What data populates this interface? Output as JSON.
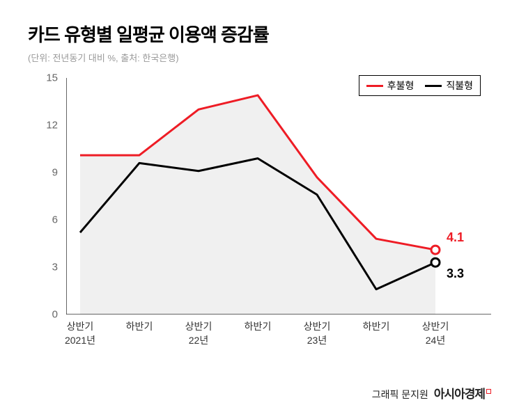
{
  "title": "카드 유형별 일평균 이용액 증감률",
  "subtitle": "(단위: 전년동기 대비 %, 출처: 한국은행)",
  "chart": {
    "type": "line",
    "background_color": "#ffffff",
    "area_fill_color": "#f0f0f0",
    "grid_color": "#cccccc",
    "axis_color": "#333333",
    "tick_fontsize": 15,
    "x_categories": [
      "상반기",
      "하반기",
      "상반기",
      "하반기",
      "상반기",
      "하반기",
      "상반기"
    ],
    "x_years": [
      "2021년",
      "",
      "22년",
      "",
      "23년",
      "",
      "24년"
    ],
    "ylim": [
      0,
      15
    ],
    "ytick_step": 3,
    "yticks": [
      0,
      3,
      6,
      9,
      12,
      15
    ],
    "series": [
      {
        "name": "후불형",
        "color": "#ee1c25",
        "line_width": 3,
        "values": [
          10.1,
          10.1,
          13.0,
          13.9,
          8.7,
          4.8,
          4.1
        ],
        "end_label": "4.1",
        "end_marker_fill": "#ffffff"
      },
      {
        "name": "직불형",
        "color": "#000000",
        "line_width": 3,
        "values": [
          5.2,
          9.6,
          9.1,
          9.9,
          7.6,
          1.6,
          3.3
        ],
        "end_label": "3.3",
        "end_marker_fill": "#ffffff"
      }
    ],
    "legend_border_color": "#000000",
    "legend_bg": "#ffffff"
  },
  "credit": {
    "author": "그래픽 문지원",
    "brand": "아시아경제"
  }
}
